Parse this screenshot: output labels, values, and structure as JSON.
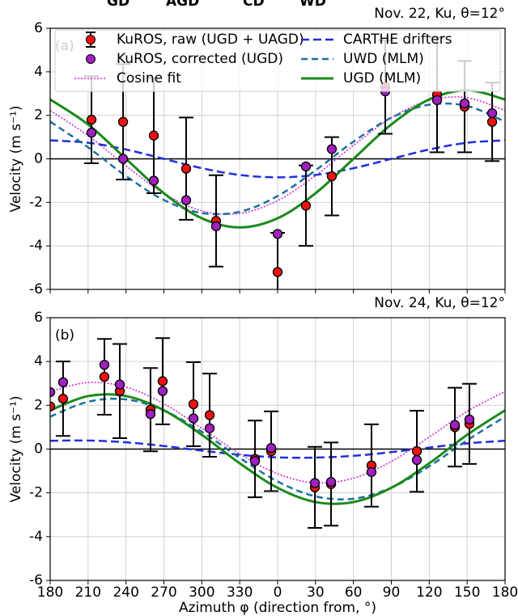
{
  "header_fragments": [
    {
      "text": "GD",
      "color": "#e2259c"
    },
    {
      "text": "AGD",
      "color": "#e2259c"
    },
    {
      "text": "CD",
      "color": "#1f2fe0"
    },
    {
      "text": "WD",
      "color": "#1f6f9f"
    }
  ],
  "chart_data": [
    {
      "type": "line",
      "title": "Nov. 22, Ku, θ=12°",
      "panel_label": "(a)",
      "ylabel": "Velocity (m s⁻¹)",
      "xlim": [
        180,
        540
      ],
      "ylim": [
        -6,
        6
      ],
      "grid": true,
      "legend": "upper center",
      "xticks": [
        180,
        210,
        240,
        270,
        300,
        330,
        360,
        390,
        420,
        450,
        480,
        510,
        540
      ],
      "yticks": [
        -6,
        -4,
        -2,
        0,
        2,
        4,
        6
      ],
      "point_x": [
        212.7,
        237.7,
        262,
        287.6,
        311.3,
        360,
        382.4,
        402.9,
        445.2,
        486.2,
        508,
        529.8
      ],
      "curve_x": [
        180,
        210,
        240,
        270,
        300,
        330,
        360,
        390,
        420,
        450,
        480,
        510,
        540
      ],
      "series": [
        {
          "name": "KuROS, raw (UGD + UAGD)",
          "kind": "errorbar",
          "color": "#ee1111",
          "values": [
            1.8,
            1.7,
            1.07,
            -0.45,
            -2.85,
            -5.2,
            -2.15,
            -0.8,
            3.3,
            2.95,
            2.4,
            1.7
          ],
          "errors": [
            2,
            2.65,
            2.65,
            2.35,
            2.1,
            1.8,
            1.85,
            1.8,
            2.15,
            2.65,
            2.1,
            1.8
          ]
        },
        {
          "name": "KuROS, corrected (UGD)",
          "kind": "scatter",
          "color": "#a020c0",
          "values": [
            1.2,
            0.0,
            -1.0,
            -1.9,
            -3.1,
            -3.45,
            -0.35,
            0.45,
            3.1,
            2.7,
            2.55,
            2.1
          ]
        },
        {
          "name": "Cosine fit",
          "kind": "line",
          "dash": "2,2",
          "width": 1.5,
          "color": "#d020d0",
          "values": [
            2.22,
            1.07,
            -0.32,
            -1.59,
            -2.39,
            -2.51,
            -1.92,
            -0.77,
            0.62,
            1.89,
            2.69,
            2.81,
            2.22
          ]
        },
        {
          "name": "CARTHE drifters",
          "kind": "line",
          "dash": "10,5",
          "width": 2.5,
          "color": "#1f2fe0",
          "values": [
            0.85,
            0.74,
            0.43,
            0,
            -0.43,
            -0.74,
            -0.85,
            -0.74,
            -0.43,
            0,
            0.43,
            0.74,
            0.85
          ]
        },
        {
          "name": "UWD (MLM)",
          "kind": "line",
          "dash": "8,5",
          "width": 2.5,
          "color": "#1f6f9f",
          "values": [
            1.71,
            0.53,
            -0.79,
            -1.89,
            -2.49,
            -2.43,
            -1.71,
            -0.53,
            0.79,
            1.89,
            2.49,
            2.43,
            1.71
          ]
        },
        {
          "name": "UGD (MLM)",
          "kind": "line",
          "width": 3,
          "color": "#1a8a1a",
          "values": [
            2.73,
            1.58,
            0,
            -1.58,
            -2.73,
            -3.15,
            -2.73,
            -1.58,
            0,
            1.58,
            2.73,
            3.15,
            2.73
          ]
        }
      ]
    },
    {
      "type": "line",
      "title": "Nov. 24, Ku, θ=12°",
      "panel_label": "(b)",
      "ylabel": "Velocity (m s⁻¹)",
      "xlabel": "Azimuth φ (direction from, °)",
      "xlim": [
        180,
        540
      ],
      "ylim": [
        -6,
        6
      ],
      "grid": true,
      "xticks": [
        180,
        210,
        240,
        270,
        300,
        330,
        {
          "value": 360,
          "label": "0"
        },
        {
          "value": 390,
          "label": "30"
        },
        {
          "value": 420,
          "label": "60"
        },
        {
          "value": 450,
          "label": "90"
        },
        {
          "value": 480,
          "label": "120"
        },
        {
          "value": 510,
          "label": "150"
        },
        {
          "value": 540,
          "label": "180"
        }
      ],
      "yticks": [
        -6,
        -4,
        -2,
        0,
        2,
        4,
        6
      ],
      "point_x": [
        180,
        190.2,
        222.9,
        235.1,
        259.4,
        269,
        293.4,
        306.2,
        342.1,
        354.9,
        389.5,
        402.3,
        434.3,
        470.2,
        500.3,
        511.8
      ],
      "curve_x": [
        180,
        210,
        240,
        270,
        300,
        330,
        360,
        390,
        420,
        450,
        480,
        510,
        540
      ],
      "series": [
        {
          "kind": "errorbar",
          "color": "#ee1111",
          "values": [
            1.95,
            2.3,
            3.3,
            2.65,
            1.8,
            3.1,
            2.05,
            1.55,
            -0.45,
            -0.1,
            -1.75,
            -1.6,
            -0.75,
            -0.1,
            1.0,
            1.15
          ],
          "errors": [
            null,
            1.7,
            1.73,
            2.15,
            1.9,
            1.97,
            1.92,
            1.9,
            1.75,
            1.82,
            1.85,
            1.9,
            1.88,
            1.85,
            1.8,
            1.83
          ]
        },
        {
          "kind": "scatter",
          "color": "#a020c0",
          "values": [
            2.6,
            3.05,
            3.85,
            2.95,
            1.6,
            2.65,
            1.4,
            0.95,
            -0.55,
            0.05,
            -1.55,
            -1.5,
            -1.05,
            -0.5,
            1.1,
            1.35
          ]
        },
        {
          "kind": "line",
          "dash": "2,2",
          "width": 1.5,
          "color": "#d020d0",
          "values": [
            2.63,
            3.04,
            2.83,
            2.07,
            0.95,
            -0.22,
            -1.13,
            -1.54,
            -1.33,
            -0.57,
            0.55,
            1.72,
            2.63
          ]
        },
        {
          "kind": "line",
          "dash": "10,5",
          "width": 2.5,
          "color": "#1f2fe0",
          "values": [
            0.38,
            0.39,
            0.31,
            0.14,
            -0.07,
            -0.26,
            -0.38,
            -0.39,
            -0.31,
            -0.14,
            0.07,
            0.26,
            0.38
          ]
        },
        {
          "kind": "line",
          "dash": "8,5",
          "width": 2.5,
          "color": "#1f6f9f",
          "values": [
            1.48,
            2.16,
            2.27,
            1.76,
            0.79,
            -0.4,
            -1.48,
            -2.16,
            -2.27,
            -1.76,
            -0.79,
            0.4,
            1.48
          ]
        },
        {
          "kind": "line",
          "width": 3,
          "color": "#1a8a1a",
          "values": [
            1.77,
            2.42,
            2.42,
            1.77,
            0.65,
            -0.65,
            -1.77,
            -2.42,
            -2.42,
            -1.77,
            -0.65,
            0.65,
            1.77
          ]
        }
      ]
    }
  ]
}
